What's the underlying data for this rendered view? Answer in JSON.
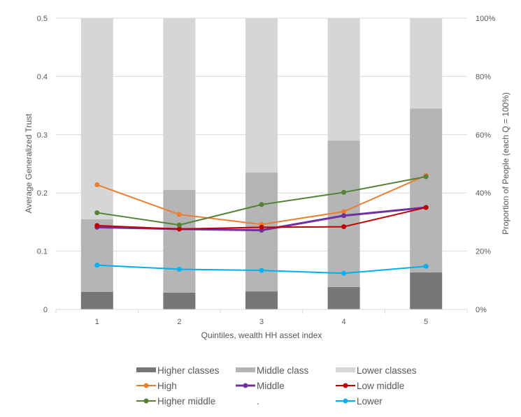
{
  "chart_data": {
    "type": "bar+line",
    "categories": [
      "1",
      "2",
      "3",
      "4",
      "5"
    ],
    "xlabel": "Quintiles, wealth HH asset index",
    "ylabel": "Average Generalized Trust",
    "y2label": "Proportion of People (each Q = 100%)",
    "ylim": [
      0,
      0.5
    ],
    "y2lim": [
      0,
      100
    ],
    "yticks": [
      "0",
      "0.1",
      "0.2",
      "0.3",
      "0.4",
      "0.5"
    ],
    "y2ticks": [
      "0%",
      "20%",
      "40%",
      "60%",
      "80%",
      "100%"
    ],
    "grid": true,
    "legend_position": "bottom",
    "bar_series": [
      {
        "name": "Higher classes",
        "color": "#767676",
        "values": [
          6,
          5.8,
          6.2,
          7.7,
          12.7
        ]
      },
      {
        "name": "Middle class",
        "color": "#b5b5b5",
        "values": [
          25,
          35.2,
          40.8,
          50.3,
          56.3
        ]
      },
      {
        "name": "Lower classes",
        "color": "#d6d6d6",
        "values": [
          69,
          59,
          53,
          42,
          31
        ]
      }
    ],
    "line_series": [
      {
        "name": "High",
        "color": "#ed7d31",
        "width": 2,
        "values": [
          0.214,
          0.163,
          0.146,
          0.168,
          0.23
        ]
      },
      {
        "name": "Middle",
        "color": "#7030a0",
        "width": 3,
        "values": [
          0.141,
          0.138,
          0.136,
          0.161,
          0.175
        ]
      },
      {
        "name": "Low middle",
        "color": "#c00000",
        "width": 2,
        "values": [
          0.144,
          0.138,
          0.141,
          0.142,
          0.175
        ]
      },
      {
        "name": "Higher middle",
        "color": "#548235",
        "width": 2,
        "values": [
          0.166,
          0.145,
          0.18,
          0.201,
          0.228
        ]
      },
      {
        "name": ".",
        "color": "none",
        "width": 0,
        "values": []
      },
      {
        "name": "Lower",
        "color": "#00b0f0",
        "width": 2,
        "values": [
          0.076,
          0.069,
          0.067,
          0.062,
          0.074
        ]
      }
    ]
  }
}
